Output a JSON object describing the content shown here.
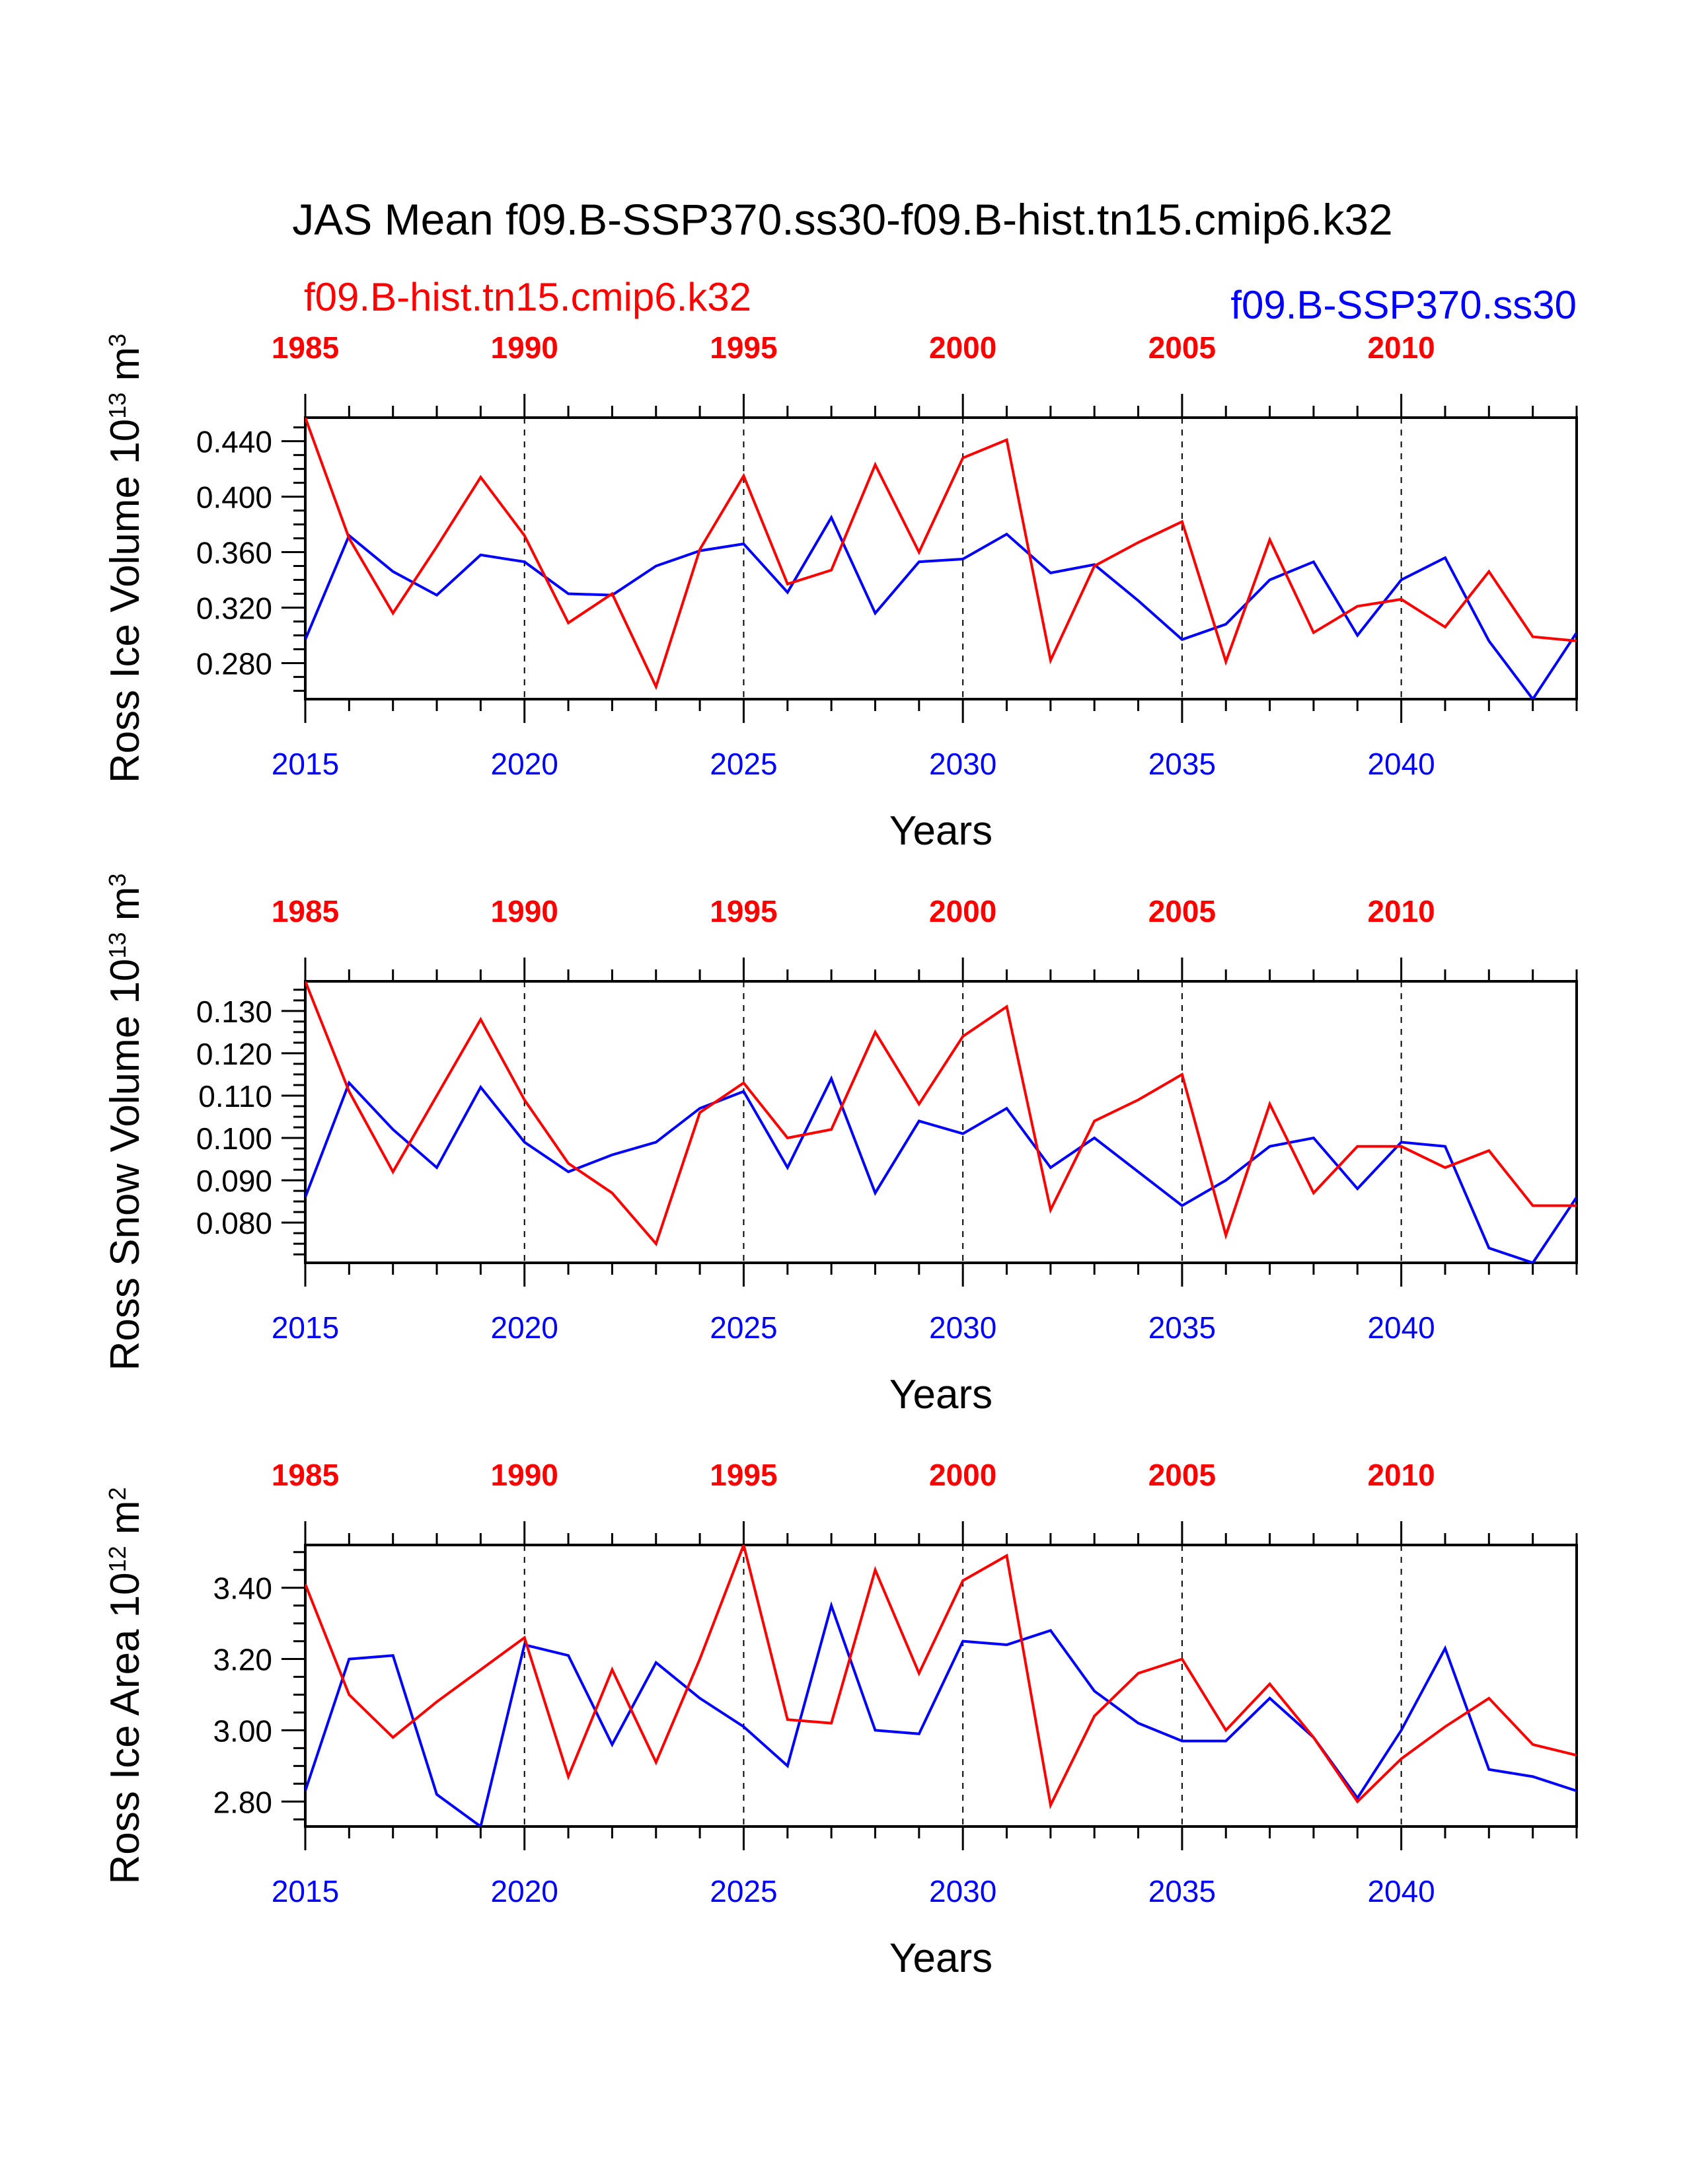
{
  "title": "JAS Mean f09.B-SSP370.ss30-f09.B-hist.tn15.cmip6.k32",
  "legend": {
    "hist_label": "f09.B-hist.tn15.cmip6.k32",
    "ssp_label": "f09.B-SSP370.ss30"
  },
  "colors": {
    "hist": "#ff0000",
    "ssp": "#0000ff",
    "axis": "#000000"
  },
  "chart_data": [
    {
      "type": "line",
      "ylabel": "Ross Ice Volume 10",
      "ylabel_exp": "13",
      "ylabel_unit": " m",
      "ylabel_unit_exp": "3",
      "xlabel": "Years",
      "xlim": [
        2015,
        2044
      ],
      "ylim": [
        0.254,
        0.457
      ],
      "yticks": [
        0.28,
        0.32,
        0.36,
        0.4,
        0.44
      ],
      "ytick_labels": [
        "0.280",
        "0.320",
        "0.360",
        "0.400",
        "0.440"
      ],
      "bottom_ticks": [
        "2015",
        "2020",
        "2025",
        "2030",
        "2035",
        "2040"
      ],
      "top_ticks": [
        "1985",
        "1990",
        "1995",
        "2000",
        "2005",
        "2010"
      ],
      "series": [
        {
          "name": "f09.B-hist.tn15.cmip6.k32",
          "key": "hist",
          "values": [
            0.457,
            0.37,
            0.316,
            0.364,
            0.414,
            0.372,
            0.309,
            0.33,
            0.263,
            0.362,
            0.415,
            0.337,
            0.347,
            0.423,
            0.36,
            0.428,
            0.441,
            0.282,
            0.35,
            0.367,
            0.382,
            0.281,
            0.369,
            0.302,
            0.321,
            0.326,
            0.306,
            0.346,
            0.299,
            0.296
          ]
        },
        {
          "name": "f09.B-SSP370.ss30",
          "key": "ssp",
          "values": [
            0.297,
            0.372,
            0.346,
            0.329,
            0.358,
            0.353,
            0.33,
            0.329,
            0.35,
            0.361,
            0.366,
            0.331,
            0.385,
            0.316,
            0.353,
            0.355,
            0.373,
            0.345,
            0.351,
            0.325,
            0.297,
            0.308,
            0.34,
            0.353,
            0.3,
            0.34,
            0.356,
            0.296,
            0.254,
            0.302
          ]
        }
      ]
    },
    {
      "type": "line",
      "ylabel": "Ross Snow Volume 10",
      "ylabel_exp": "13",
      "ylabel_unit": " m",
      "ylabel_unit_exp": "3",
      "xlabel": "Years",
      "xlim": [
        2015,
        2044
      ],
      "ylim": [
        0.0705,
        0.137
      ],
      "yticks": [
        0.08,
        0.09,
        0.1,
        0.11,
        0.12,
        0.13
      ],
      "ytick_labels": [
        "0.080",
        "0.090",
        "0.100",
        "0.110",
        "0.120",
        "0.130"
      ],
      "bottom_ticks": [
        "2015",
        "2020",
        "2025",
        "2030",
        "2035",
        "2040"
      ],
      "top_ticks": [
        "1985",
        "1990",
        "1995",
        "2000",
        "2005",
        "2010"
      ],
      "series": [
        {
          "name": "f09.B-hist.tn15.cmip6.k32",
          "key": "hist",
          "values": [
            0.137,
            0.111,
            0.092,
            0.11,
            0.128,
            0.109,
            0.094,
            0.087,
            0.075,
            0.106,
            0.113,
            0.1,
            0.102,
            0.125,
            0.108,
            0.124,
            0.131,
            0.083,
            0.104,
            0.109,
            0.115,
            0.077,
            0.108,
            0.087,
            0.098,
            0.098,
            0.093,
            0.097,
            0.084,
            0.084
          ]
        },
        {
          "name": "f09.B-SSP370.ss30",
          "key": "ssp",
          "values": [
            0.086,
            0.113,
            0.102,
            0.093,
            0.112,
            0.099,
            0.092,
            0.096,
            0.099,
            0.107,
            0.111,
            0.093,
            0.114,
            0.087,
            0.104,
            0.101,
            0.107,
            0.093,
            0.1,
            0.092,
            0.084,
            0.09,
            0.098,
            0.1,
            0.088,
            0.099,
            0.098,
            0.074,
            0.0705,
            0.086
          ]
        }
      ]
    },
    {
      "type": "line",
      "ylabel": "Ross Ice Area 10",
      "ylabel_exp": "12",
      "ylabel_unit": " m",
      "ylabel_unit_exp": "2",
      "xlabel": "Years",
      "xlim": [
        2015,
        2044
      ],
      "ylim": [
        2.73,
        3.52
      ],
      "yticks": [
        2.8,
        3.0,
        3.2,
        3.4
      ],
      "ytick_labels": [
        "2.80",
        "3.00",
        "3.20",
        "3.40"
      ],
      "bottom_ticks": [
        "2015",
        "2020",
        "2025",
        "2030",
        "2035",
        "2040"
      ],
      "top_ticks": [
        "1985",
        "1990",
        "1995",
        "2000",
        "2005",
        "2010"
      ],
      "series": [
        {
          "name": "f09.B-hist.tn15.cmip6.k32",
          "key": "hist",
          "values": [
            3.41,
            3.1,
            2.98,
            3.08,
            3.17,
            3.26,
            2.87,
            3.17,
            2.91,
            3.2,
            3.52,
            3.03,
            3.02,
            3.45,
            3.16,
            3.42,
            3.49,
            2.79,
            3.04,
            3.16,
            3.2,
            3.0,
            3.13,
            2.98,
            2.8,
            2.92,
            3.01,
            3.09,
            2.96,
            2.93
          ]
        },
        {
          "name": "f09.B-SSP370.ss30",
          "key": "ssp",
          "values": [
            2.83,
            3.2,
            3.21,
            2.82,
            2.73,
            3.24,
            3.21,
            2.96,
            3.19,
            3.09,
            3.01,
            2.9,
            3.35,
            3.0,
            2.99,
            3.25,
            3.24,
            3.28,
            3.11,
            3.02,
            2.97,
            2.97,
            3.09,
            2.98,
            2.81,
            3.0,
            3.23,
            2.89,
            2.87,
            2.83
          ]
        }
      ]
    }
  ]
}
